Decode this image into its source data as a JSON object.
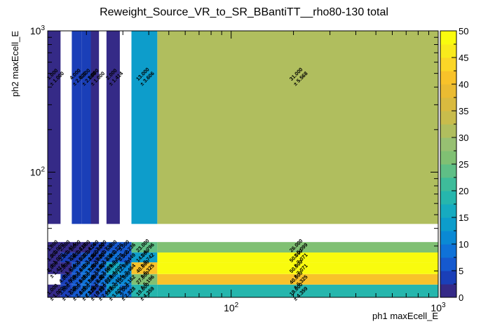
{
  "chart_data": {
    "type": "heatmap",
    "title": "Reweight_Source_VR_to_SR_BBantiTT__rho80-130 total",
    "xlabel": "ph1 maxEcell_E",
    "ylabel": "ph2 maxEcell_E",
    "x_scale": "log",
    "y_scale": "log",
    "xlim": [
      13,
      1000
    ],
    "ylim": [
      13,
      1000
    ],
    "x_ticks": [
      {
        "value": 100,
        "base": "10",
        "exp": "2"
      },
      {
        "value": 1000,
        "base": "10",
        "exp": "3"
      }
    ],
    "y_ticks": [
      {
        "value": 100,
        "base": "10",
        "exp": "2"
      },
      {
        "value": 1000,
        "base": "10",
        "exp": "3"
      }
    ],
    "x_edges": [
      13,
      15,
      17,
      19,
      21,
      23,
      25,
      29,
      33,
      44,
      1000
    ],
    "y_edges": [
      13,
      16,
      19,
      23,
      27,
      32,
      43,
      1000
    ],
    "cells": [
      {
        "xi": 0,
        "yi": 0,
        "value": 1,
        "label": "1.000",
        "err": "± 1.000"
      },
      {
        "xi": 1,
        "yi": 0,
        "value": 3,
        "label": "3.000",
        "err": "± 1.732"
      },
      {
        "xi": 2,
        "yi": 0,
        "value": 6,
        "label": "6.000",
        "err": "± 2.449"
      },
      {
        "xi": 3,
        "yi": 0,
        "value": 8,
        "label": "8.000",
        "err": "± 2.828"
      },
      {
        "xi": 4,
        "yi": 0,
        "value": 3,
        "label": "3.000",
        "err": "± 1.732"
      },
      {
        "xi": 5,
        "yi": 0,
        "value": 6,
        "label": "6.000",
        "err": "± 2.449"
      },
      {
        "xi": 6,
        "yi": 0,
        "value": 13,
        "label": "13.000",
        "err": "± 3.606"
      },
      {
        "xi": 7,
        "yi": 0,
        "value": 8,
        "label": "8.000",
        "err": "± 2.828"
      },
      {
        "xi": 8,
        "yi": 0,
        "value": 19,
        "label": "19.000",
        "err": "± 4.359"
      },
      {
        "xi": 9,
        "yi": 0,
        "value": 19,
        "label": "19.000",
        "err": "± 4.359"
      },
      {
        "xi": 1,
        "yi": 1,
        "value": 4,
        "label": "4.000",
        "err": "± 2.000"
      },
      {
        "xi": 2,
        "yi": 1,
        "value": 7,
        "label": "7.000",
        "err": "± 2.646"
      },
      {
        "xi": 3,
        "yi": 1,
        "value": 9,
        "label": "9.000",
        "err": "± 3.000"
      },
      {
        "xi": 4,
        "yi": 1,
        "value": 7,
        "label": "7.000",
        "err": "± 2.646"
      },
      {
        "xi": 5,
        "yi": 1,
        "value": 8,
        "label": "8.000",
        "err": "± 2.828"
      },
      {
        "xi": 6,
        "yi": 1,
        "value": 12,
        "label": "12.000",
        "err": "± 3.464"
      },
      {
        "xi": 7,
        "yi": 1,
        "value": 10,
        "label": "10.000",
        "err": "± 3.162"
      },
      {
        "xi": 8,
        "yi": 1,
        "value": 27,
        "label": "27.000",
        "err": "± 5.196"
      },
      {
        "xi": 9,
        "yi": 1,
        "value": 40,
        "label": "40.000",
        "err": "± 6.325"
      },
      {
        "xi": 0,
        "yi": 2,
        "value": 2,
        "label": "2.000",
        "err": "± 1.414"
      },
      {
        "xi": 1,
        "yi": 2,
        "value": 2,
        "label": "2.000",
        "err": "± 1.414"
      },
      {
        "xi": 2,
        "yi": 2,
        "value": 6,
        "label": "6.000",
        "err": "± 2.449"
      },
      {
        "xi": 3,
        "yi": 2,
        "value": 8,
        "label": "8.000",
        "err": "± 2.828"
      },
      {
        "xi": 4,
        "yi": 2,
        "value": 7,
        "label": "7.000",
        "err": "± 2.646"
      },
      {
        "xi": 5,
        "yi": 2,
        "value": 9,
        "label": "9.000",
        "err": "± 3.000"
      },
      {
        "xi": 6,
        "yi": 2,
        "value": 16,
        "label": "16.000",
        "err": "± 4.000"
      },
      {
        "xi": 7,
        "yi": 2,
        "value": 12,
        "label": "12.000",
        "err": "± 3.464"
      },
      {
        "xi": 8,
        "yi": 2,
        "value": 40,
        "label": "40.000",
        "err": "± 6.325"
      },
      {
        "xi": 9,
        "yi": 2,
        "value": 50,
        "label": "50.000",
        "err": "± 7.071"
      },
      {
        "xi": 0,
        "yi": 3,
        "value": 1,
        "label": "1.000",
        "err": "± 1.000"
      },
      {
        "xi": 1,
        "yi": 3,
        "value": 3,
        "label": "3.000",
        "err": "± 1.732"
      },
      {
        "xi": 2,
        "yi": 3,
        "value": 4,
        "label": "4.000",
        "err": "± 2.000"
      },
      {
        "xi": 3,
        "yi": 3,
        "value": 5,
        "label": "5.000",
        "err": "± 2.236"
      },
      {
        "xi": 4,
        "yi": 3,
        "value": 4,
        "label": "4.000",
        "err": "± 2.000"
      },
      {
        "xi": 5,
        "yi": 3,
        "value": 5,
        "label": "5.000",
        "err": "± 2.236"
      },
      {
        "xi": 6,
        "yi": 3,
        "value": 8,
        "label": "8.000",
        "err": "± 2.828"
      },
      {
        "xi": 7,
        "yi": 3,
        "value": 6,
        "label": "6.000",
        "err": "± 2.449"
      },
      {
        "xi": 8,
        "yi": 3,
        "value": 14,
        "label": "14.000",
        "err": "± 3.742"
      },
      {
        "xi": 9,
        "yi": 3,
        "value": 50,
        "label": "50.000",
        "err": "± 7.071"
      },
      {
        "xi": 0,
        "yi": 4,
        "value": 1,
        "label": "1.000",
        "err": "± 1.000"
      },
      {
        "xi": 1,
        "yi": 4,
        "value": 2,
        "label": "2.000",
        "err": "± 1.414"
      },
      {
        "xi": 2,
        "yi": 4,
        "value": 2,
        "label": "2.000",
        "err": "± 1.414"
      },
      {
        "xi": 3,
        "yi": 4,
        "value": 2,
        "label": "2.000",
        "err": "± 1.414"
      },
      {
        "xi": 4,
        "yi": 4,
        "value": 4,
        "label": "4.000",
        "err": "± 2.000"
      },
      {
        "xi": 5,
        "yi": 4,
        "value": 3,
        "label": "3.000",
        "err": "± 1.732"
      },
      {
        "xi": 6,
        "yi": 4,
        "value": 5,
        "label": "5.000",
        "err": "± 2.236"
      },
      {
        "xi": 7,
        "yi": 4,
        "value": 5,
        "label": "5.000",
        "err": "± 2.236"
      },
      {
        "xi": 8,
        "yi": 4,
        "value": 23,
        "label": "23.000",
        "err": "± 4.796"
      },
      {
        "xi": 9,
        "yi": 4,
        "value": 26,
        "label": "26.000",
        "err": "± 5.099"
      },
      {
        "xi": 0,
        "yi": 6,
        "value": 1,
        "label": "1.000",
        "err": "± 1.000"
      },
      {
        "xi": 2,
        "yi": 6,
        "value": 4,
        "label": "4.000",
        "err": "± 2.000"
      },
      {
        "xi": 3,
        "yi": 6,
        "value": 4,
        "label": "4.000",
        "err": "± 2.000"
      },
      {
        "xi": 4,
        "yi": 6,
        "value": 1,
        "label": "1.000",
        "err": "± 1.000"
      },
      {
        "xi": 6,
        "yi": 6,
        "value": 2,
        "label": "2.000",
        "err": "± 1.414"
      },
      {
        "xi": 8,
        "yi": 6,
        "value": 13,
        "label": "13.000",
        "err": "± 3.606"
      },
      {
        "xi": 9,
        "yi": 6,
        "value": 31,
        "label": "31.000",
        "err": "± 5.568"
      }
    ],
    "palette": {
      "zlim": [
        0,
        50
      ],
      "ticks": [
        "0",
        "5",
        "10",
        "15",
        "20",
        "25",
        "30",
        "35",
        "40",
        "45",
        "50"
      ],
      "colors": [
        "#352a87",
        "#1a3fb8",
        "#1559cf",
        "#0f72d8",
        "#0a89d4",
        "#0d9dcb",
        "#16abc0",
        "#26b6ad",
        "#3ebc9a",
        "#5fbf86",
        "#80c073",
        "#97c072",
        "#b0be5e",
        "#c8bc4c",
        "#d9ba3f",
        "#eabb32",
        "#f8c22a",
        "#fbd627",
        "#f9ea1c",
        "#f9fb0e"
      ]
    }
  }
}
